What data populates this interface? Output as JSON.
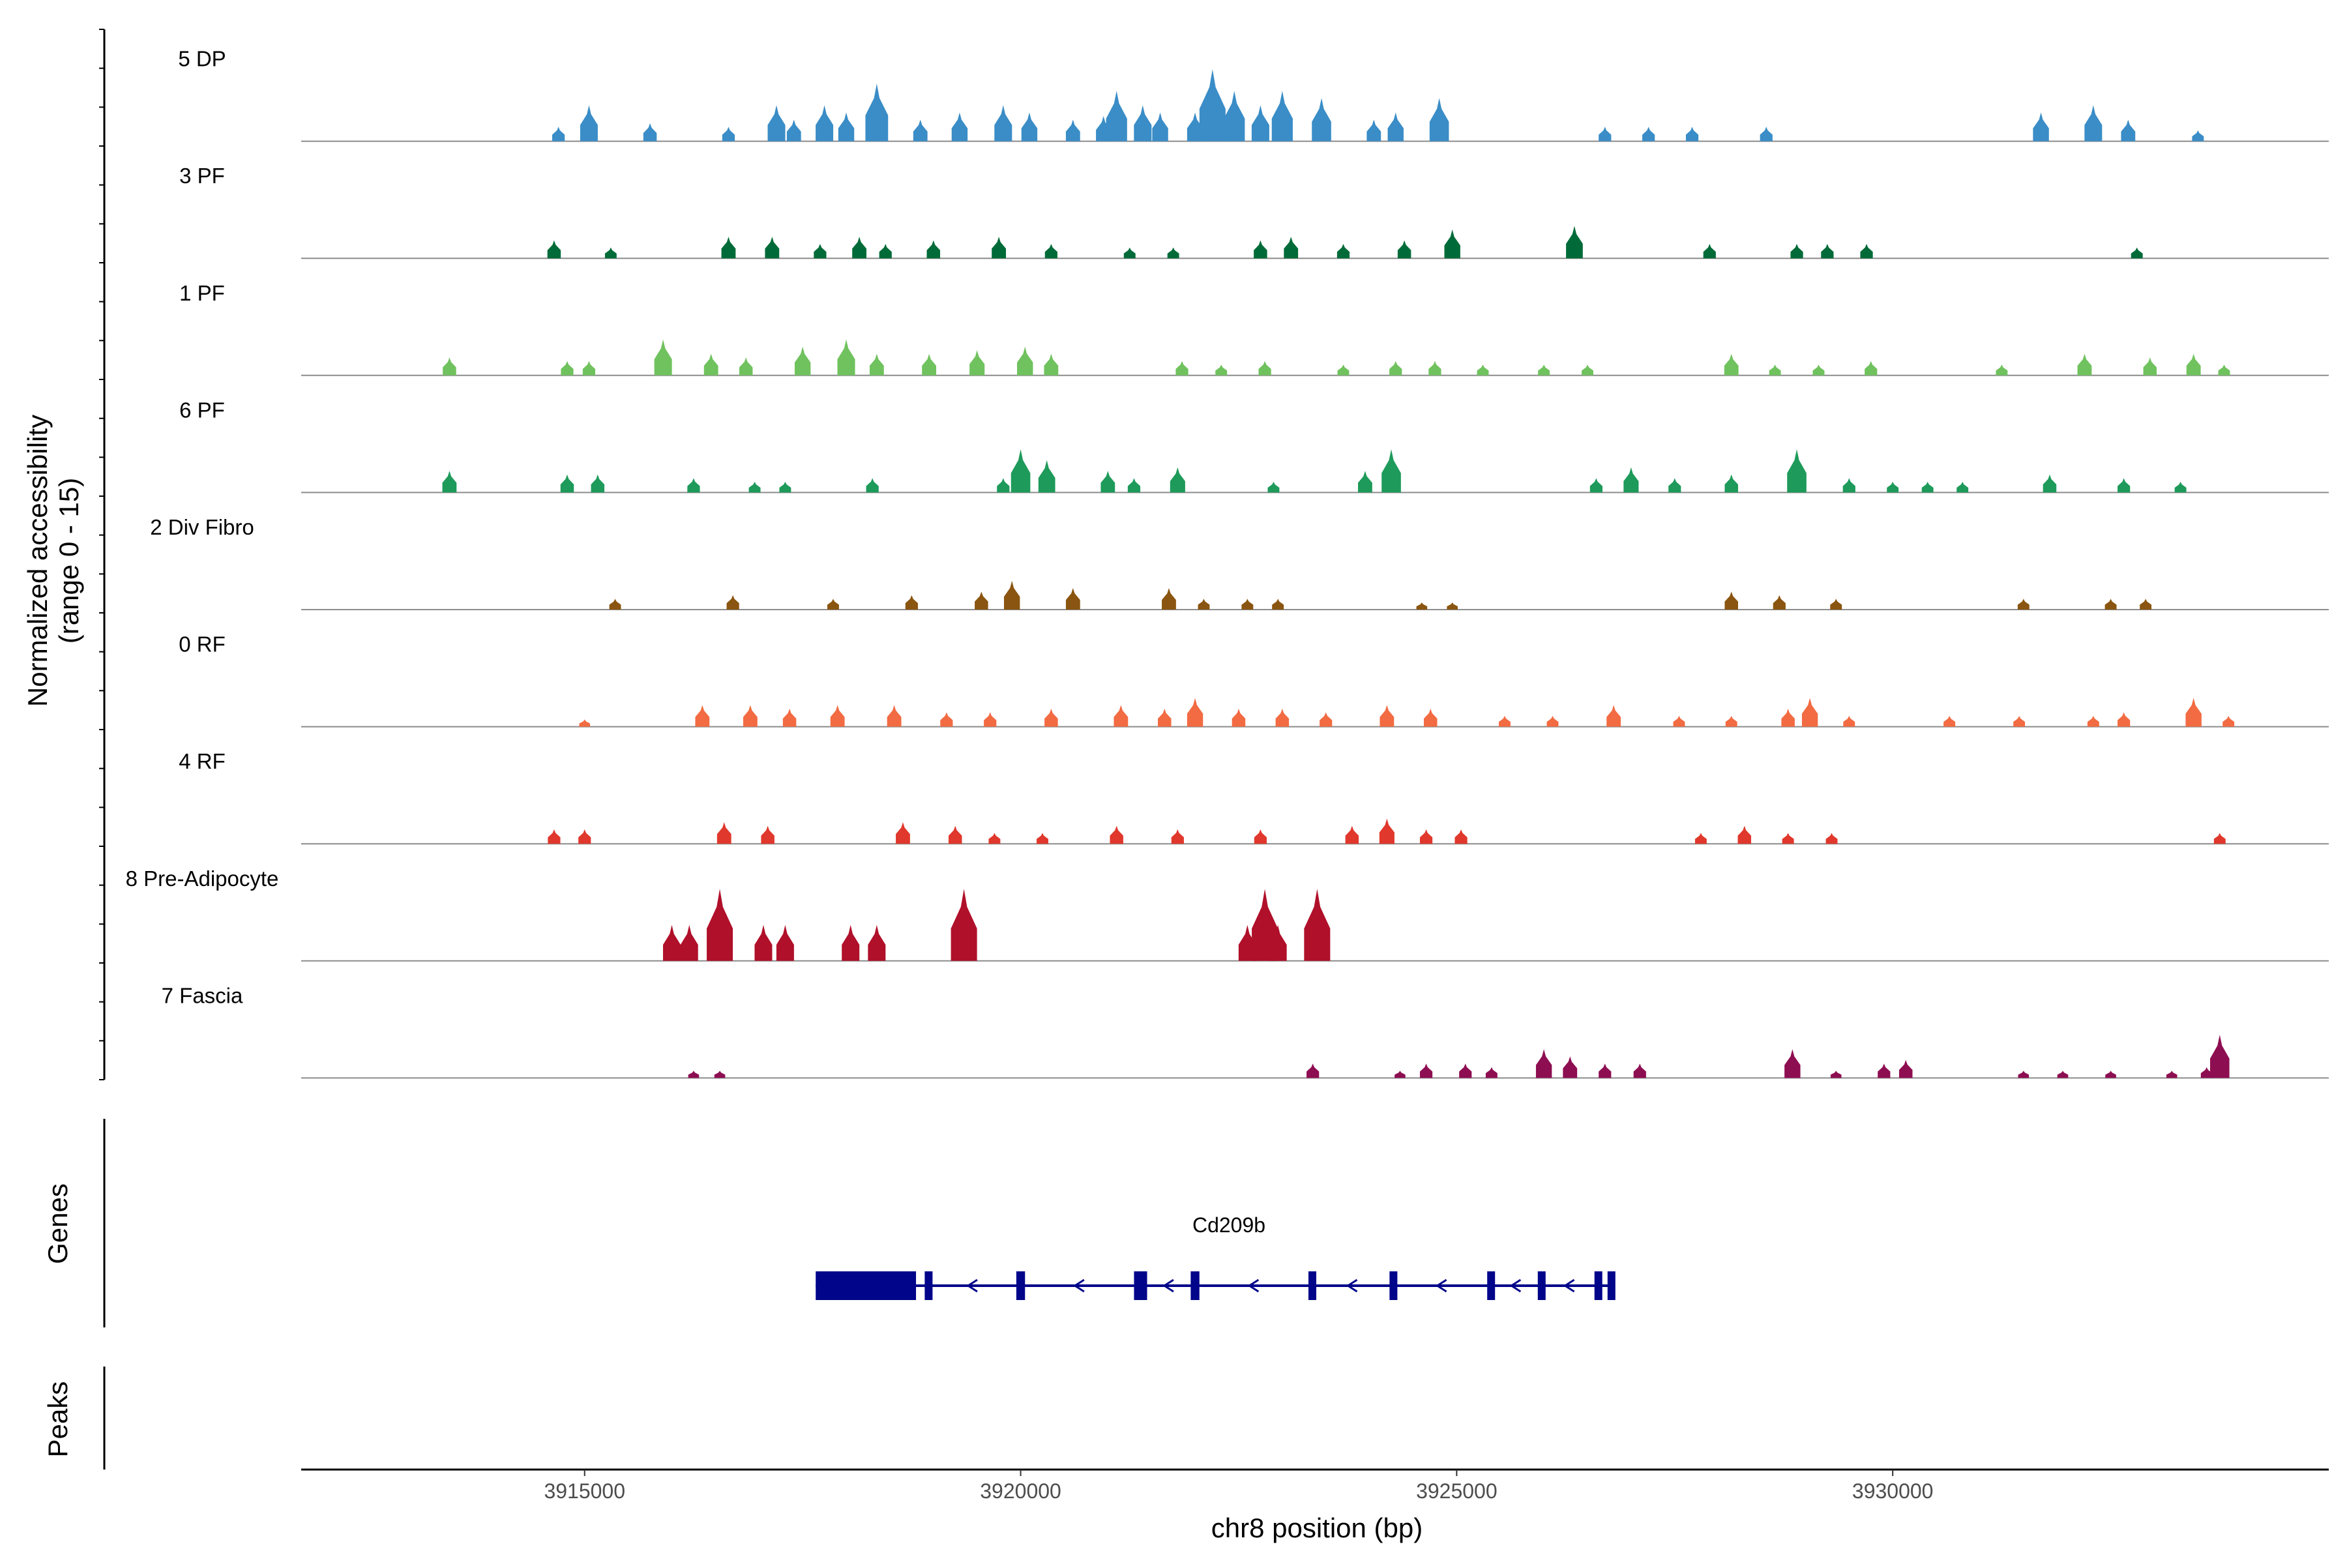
{
  "chart_data": {
    "type": "area",
    "subtype": "coverage-track",
    "ylabel_line1": "Normalized accessibility",
    "ylabel_line2": "(range 0 - 15)",
    "ylim": [
      0,
      15
    ],
    "xlabel": "chr8 position (bp)",
    "xlim": [
      3911750,
      3935000
    ],
    "xticks": [
      3915000,
      3920000,
      3925000,
      3930000
    ],
    "xtick_labels": [
      "3915000",
      "3920000",
      "3925000",
      "3930000"
    ],
    "series": [
      {
        "name": "5 DP",
        "color": "#3A8DC7",
        "peaks": [
          [
            3914700,
            2
          ],
          [
            3915050,
            5
          ],
          [
            3915750,
            2.5
          ],
          [
            3916650,
            2
          ],
          [
            3917200,
            5
          ],
          [
            3917400,
            3
          ],
          [
            3917750,
            5
          ],
          [
            3918000,
            4
          ],
          [
            3918350,
            8
          ],
          [
            3918850,
            3
          ],
          [
            3919300,
            4
          ],
          [
            3919800,
            5
          ],
          [
            3920100,
            4
          ],
          [
            3920600,
            3
          ],
          [
            3920950,
            3.5
          ],
          [
            3921100,
            7
          ],
          [
            3921400,
            5
          ],
          [
            3921600,
            4
          ],
          [
            3922000,
            4
          ],
          [
            3922200,
            10
          ],
          [
            3922450,
            7
          ],
          [
            3922750,
            5
          ],
          [
            3923000,
            7
          ],
          [
            3923450,
            6
          ],
          [
            3924050,
            3
          ],
          [
            3924300,
            4
          ],
          [
            3924800,
            6
          ],
          [
            3926700,
            2
          ],
          [
            3927200,
            2
          ],
          [
            3927700,
            2
          ],
          [
            3928550,
            2
          ],
          [
            3931700,
            4
          ],
          [
            3932300,
            5
          ],
          [
            3932700,
            3
          ],
          [
            3933500,
            1.5
          ]
        ]
      },
      {
        "name": "3 PF",
        "color": "#006B38",
        "peaks": [
          [
            3914650,
            2.5
          ],
          [
            3915300,
            1.5
          ],
          [
            3916650,
            3
          ],
          [
            3917150,
            3
          ],
          [
            3917700,
            2
          ],
          [
            3918150,
            3
          ],
          [
            3918450,
            2
          ],
          [
            3919000,
            2.5
          ],
          [
            3919750,
            3
          ],
          [
            3920350,
            2
          ],
          [
            3921250,
            1.5
          ],
          [
            3921750,
            1.5
          ],
          [
            3922750,
            2.5
          ],
          [
            3923100,
            3
          ],
          [
            3923700,
            2
          ],
          [
            3924400,
            2.5
          ],
          [
            3924950,
            4
          ],
          [
            3926350,
            4.5
          ],
          [
            3927900,
            2
          ],
          [
            3928900,
            2
          ],
          [
            3929250,
            2
          ],
          [
            3929700,
            2
          ],
          [
            3932800,
            1.5
          ]
        ]
      },
      {
        "name": "1 PF",
        "color": "#70C25E",
        "peaks": [
          [
            3913450,
            2.5
          ],
          [
            3914800,
            2
          ],
          [
            3915050,
            2
          ],
          [
            3915900,
            5
          ],
          [
            3916450,
            3
          ],
          [
            3916850,
            2.5
          ],
          [
            3917500,
            4
          ],
          [
            3918000,
            5
          ],
          [
            3918350,
            3
          ],
          [
            3918950,
            3
          ],
          [
            3919500,
            3.5
          ],
          [
            3920050,
            4
          ],
          [
            3920350,
            3
          ],
          [
            3921850,
            2
          ],
          [
            3922300,
            1.5
          ],
          [
            3922800,
            2
          ],
          [
            3923700,
            1.5
          ],
          [
            3924300,
            2
          ],
          [
            3924750,
            2
          ],
          [
            3925300,
            1.5
          ],
          [
            3926000,
            1.5
          ],
          [
            3926500,
            1.5
          ],
          [
            3928150,
            3
          ],
          [
            3928650,
            1.5
          ],
          [
            3929150,
            1.5
          ],
          [
            3929750,
            2
          ],
          [
            3931250,
            1.5
          ],
          [
            3932200,
            3
          ],
          [
            3932950,
            2.5
          ],
          [
            3933450,
            3
          ],
          [
            3933800,
            1.5
          ]
        ]
      },
      {
        "name": "6 PF",
        "color": "#1E9A5A",
        "peaks": [
          [
            3913450,
            3
          ],
          [
            3914800,
            2.5
          ],
          [
            3915150,
            2.5
          ],
          [
            3916250,
            2
          ],
          [
            3916950,
            1.5
          ],
          [
            3917300,
            1.5
          ],
          [
            3918300,
            2
          ],
          [
            3919800,
            2
          ],
          [
            3920000,
            6
          ],
          [
            3920300,
            4.5
          ],
          [
            3921000,
            3
          ],
          [
            3921300,
            2
          ],
          [
            3921800,
            3.5
          ],
          [
            3922900,
            1.5
          ],
          [
            3923950,
            3
          ],
          [
            3924250,
            6
          ],
          [
            3926600,
            2
          ],
          [
            3927000,
            3.5
          ],
          [
            3927500,
            2
          ],
          [
            3928150,
            2.5
          ],
          [
            3928900,
            6
          ],
          [
            3929500,
            2
          ],
          [
            3930000,
            1.5
          ],
          [
            3930400,
            1.5
          ],
          [
            3930800,
            1.5
          ],
          [
            3931800,
            2.5
          ],
          [
            3932650,
            2
          ],
          [
            3933300,
            1.5
          ]
        ]
      },
      {
        "name": "2 Div Fibro",
        "color": "#8A5510",
        "peaks": [
          [
            3915350,
            1.5
          ],
          [
            3916700,
            2
          ],
          [
            3917850,
            1.5
          ],
          [
            3918750,
            2
          ],
          [
            3919550,
            2.5
          ],
          [
            3919900,
            4
          ],
          [
            3920600,
            3
          ],
          [
            3921700,
            3
          ],
          [
            3922100,
            1.5
          ],
          [
            3922600,
            1.5
          ],
          [
            3922950,
            1.5
          ],
          [
            3924600,
            1
          ],
          [
            3924950,
            1
          ],
          [
            3928150,
            2.5
          ],
          [
            3928700,
            2
          ],
          [
            3929350,
            1.5
          ],
          [
            3931500,
            1.5
          ],
          [
            3932500,
            1.5
          ],
          [
            3932900,
            1.5
          ]
        ]
      },
      {
        "name": "0 RF",
        "color": "#F26B42",
        "peaks": [
          [
            3915000,
            1
          ],
          [
            3916350,
            3
          ],
          [
            3916900,
            3
          ],
          [
            3917350,
            2.5
          ],
          [
            3917900,
            3
          ],
          [
            3918550,
            3
          ],
          [
            3919150,
            2
          ],
          [
            3919650,
            2
          ],
          [
            3920350,
            2.5
          ],
          [
            3921150,
            3
          ],
          [
            3921650,
            2.5
          ],
          [
            3922000,
            4
          ],
          [
            3922500,
            2.5
          ],
          [
            3923000,
            2.5
          ],
          [
            3923500,
            2
          ],
          [
            3924200,
            3
          ],
          [
            3924700,
            2.5
          ],
          [
            3925550,
            1.5
          ],
          [
            3926100,
            1.5
          ],
          [
            3926800,
            3
          ],
          [
            3927550,
            1.5
          ],
          [
            3928150,
            1.5
          ],
          [
            3928800,
            2.5
          ],
          [
            3929050,
            4
          ],
          [
            3929500,
            1.5
          ],
          [
            3930650,
            1.5
          ],
          [
            3931450,
            1.5
          ],
          [
            3932300,
            1.5
          ],
          [
            3932650,
            2
          ],
          [
            3933450,
            4
          ],
          [
            3933850,
            1.5
          ]
        ]
      },
      {
        "name": "4 RF",
        "color": "#E0382C",
        "peaks": [
          [
            3914650,
            2
          ],
          [
            3915000,
            2
          ],
          [
            3916600,
            3
          ],
          [
            3917100,
            2.5
          ],
          [
            3918650,
            3
          ],
          [
            3919250,
            2.5
          ],
          [
            3919700,
            1.5
          ],
          [
            3920250,
            1.5
          ],
          [
            3921100,
            2.5
          ],
          [
            3921800,
            2
          ],
          [
            3922750,
            2
          ],
          [
            3923800,
            2.5
          ],
          [
            3924200,
            3.5
          ],
          [
            3924650,
            2
          ],
          [
            3925050,
            2
          ],
          [
            3927800,
            1.5
          ],
          [
            3928300,
            2.5
          ],
          [
            3928800,
            1.5
          ],
          [
            3929300,
            1.5
          ],
          [
            3933750,
            1.5
          ]
        ]
      },
      {
        "name": "8 Pre-Adipocyte",
        "color": "#B0102A",
        "peaks": [
          [
            3916000,
            5
          ],
          [
            3916200,
            5
          ],
          [
            3916550,
            10
          ],
          [
            3917050,
            5
          ],
          [
            3917300,
            5
          ],
          [
            3918050,
            5
          ],
          [
            3918350,
            5
          ],
          [
            3919350,
            10
          ],
          [
            3922600,
            5
          ],
          [
            3922800,
            10
          ],
          [
            3922950,
            5
          ],
          [
            3923400,
            10
          ]
        ]
      },
      {
        "name": "7 Fascia",
        "color": "#8E0E52",
        "peaks": [
          [
            3916250,
            1
          ],
          [
            3916550,
            1
          ],
          [
            3923350,
            2
          ],
          [
            3924350,
            1
          ],
          [
            3924650,
            2
          ],
          [
            3925100,
            2
          ],
          [
            3925400,
            1.5
          ],
          [
            3926000,
            4
          ],
          [
            3926300,
            3
          ],
          [
            3926700,
            2
          ],
          [
            3927100,
            2
          ],
          [
            3928850,
            4
          ],
          [
            3929350,
            1
          ],
          [
            3929900,
            2
          ],
          [
            3930150,
            2.5
          ],
          [
            3931500,
            1
          ],
          [
            3931950,
            1
          ],
          [
            3932500,
            1
          ],
          [
            3933200,
            1
          ],
          [
            3933600,
            1.5
          ],
          [
            3933750,
            6
          ]
        ]
      }
    ],
    "genes_track_label": "Genes",
    "gene": {
      "name": "Cd209b",
      "start": 3917650,
      "end": 3926800,
      "strand": "-",
      "exons": [
        [
          3917650,
          3918800
        ],
        [
          3918900,
          3918950
        ],
        [
          3919950,
          3920050
        ],
        [
          3921300,
          3921450
        ],
        [
          3921950,
          3922050
        ],
        [
          3923300,
          3923380
        ],
        [
          3924230,
          3924310
        ],
        [
          3925350,
          3925430
        ],
        [
          3925930,
          3926010
        ],
        [
          3926580,
          3926660
        ],
        [
          3926730,
          3926800
        ]
      ],
      "color": "#00058A"
    },
    "peaks_track_label": "Peaks"
  }
}
